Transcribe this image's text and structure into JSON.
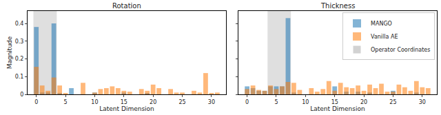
{
  "chart_data": [
    {
      "type": "bar",
      "title": "Rotation",
      "x_label": "Latent Dimension",
      "y_label": "Magnitude",
      "x": [
        0,
        1,
        2,
        3,
        4,
        5,
        6,
        7,
        8,
        9,
        10,
        11,
        12,
        13,
        14,
        15,
        16,
        17,
        18,
        19,
        20,
        21,
        22,
        23,
        24,
        25,
        26,
        27,
        28,
        29,
        30,
        31
      ],
      "series": [
        {
          "name": "MANGO",
          "color": "#1f77b4",
          "values": [
            0.38,
            0.01,
            0.01,
            0.4,
            0.005,
            0.0,
            0.035,
            0.0,
            0.0,
            0.0,
            0.01,
            0.0,
            0.0,
            0.0,
            0.0,
            0.01,
            0.0,
            0.0,
            0.0,
            0.005,
            0.0,
            0.0,
            0.0,
            0.0,
            0.0,
            0.0,
            0.0,
            0.0,
            0.0,
            0.0,
            0.0,
            0.0
          ]
        },
        {
          "name": "Vanilla AE",
          "color": "#ff7f0e",
          "values": [
            0.155,
            0.05,
            0.02,
            0.095,
            0.05,
            0.005,
            0.0,
            0.0,
            0.065,
            0.0,
            0.01,
            0.03,
            0.035,
            0.045,
            0.035,
            0.02,
            0.015,
            0.0,
            0.03,
            0.02,
            0.055,
            0.035,
            0.0,
            0.03,
            0.01,
            0.01,
            0.0,
            0.02,
            0.01,
            0.12,
            0.005,
            0.01
          ]
        }
      ],
      "highlight": {
        "label": "Operator Coordinates",
        "from": -0.5,
        "to": 3.5,
        "color": "#bfbfbf"
      },
      "xlim": [
        -1.5,
        32.5
      ],
      "ylim": [
        0,
        0.47
      ],
      "xticks": [
        0,
        5,
        10,
        15,
        20,
        25,
        30
      ],
      "yticks": [
        0,
        0.1,
        0.2,
        0.3,
        0.4
      ]
    },
    {
      "type": "bar",
      "title": "Thickness",
      "x_label": "Latent Dimension",
      "x": [
        0,
        1,
        2,
        3,
        4,
        5,
        6,
        7,
        8,
        9,
        10,
        11,
        12,
        13,
        14,
        15,
        16,
        17,
        18,
        19,
        20,
        21,
        22,
        23,
        24,
        25,
        26,
        27,
        28,
        29,
        30,
        31
      ],
      "series": [
        {
          "name": "MANGO",
          "color": "#1f77b4",
          "values": [
            0.045,
            0.035,
            0.02,
            0.02,
            0.045,
            0.045,
            0.045,
            0.43,
            0.01,
            0.0,
            0.0,
            0.0,
            0.0,
            0.0,
            0.0,
            0.045,
            0.0,
            0.015,
            0.0,
            0.015,
            0.0,
            0.01,
            0.0,
            0.0,
            0.0,
            0.02,
            0.0,
            0.0,
            0.0,
            0.01,
            0.0,
            0.0
          ]
        },
        {
          "name": "Vanilla AE",
          "color": "#ff7f0e",
          "values": [
            0.03,
            0.05,
            0.025,
            0.02,
            0.05,
            0.03,
            0.045,
            0.07,
            0.065,
            0.025,
            0.0,
            0.035,
            0.015,
            0.03,
            0.075,
            0.02,
            0.065,
            0.04,
            0.035,
            0.05,
            0.02,
            0.055,
            0.035,
            0.06,
            0.015,
            0.015,
            0.055,
            0.04,
            0.02,
            0.075,
            0.04,
            0.035
          ]
        }
      ],
      "highlight": {
        "label": "Operator Coordinates",
        "from": 3.5,
        "to": 7.5,
        "color": "#bfbfbf"
      },
      "xlim": [
        -1.5,
        32.5
      ],
      "ylim": [
        0,
        0.47
      ],
      "xticks": [
        0,
        5,
        10,
        15,
        20,
        25,
        30
      ],
      "yticks": [
        0,
        0.1,
        0.2,
        0.3,
        0.4
      ],
      "tick_labels": "x",
      "legend": "upper right"
    }
  ]
}
